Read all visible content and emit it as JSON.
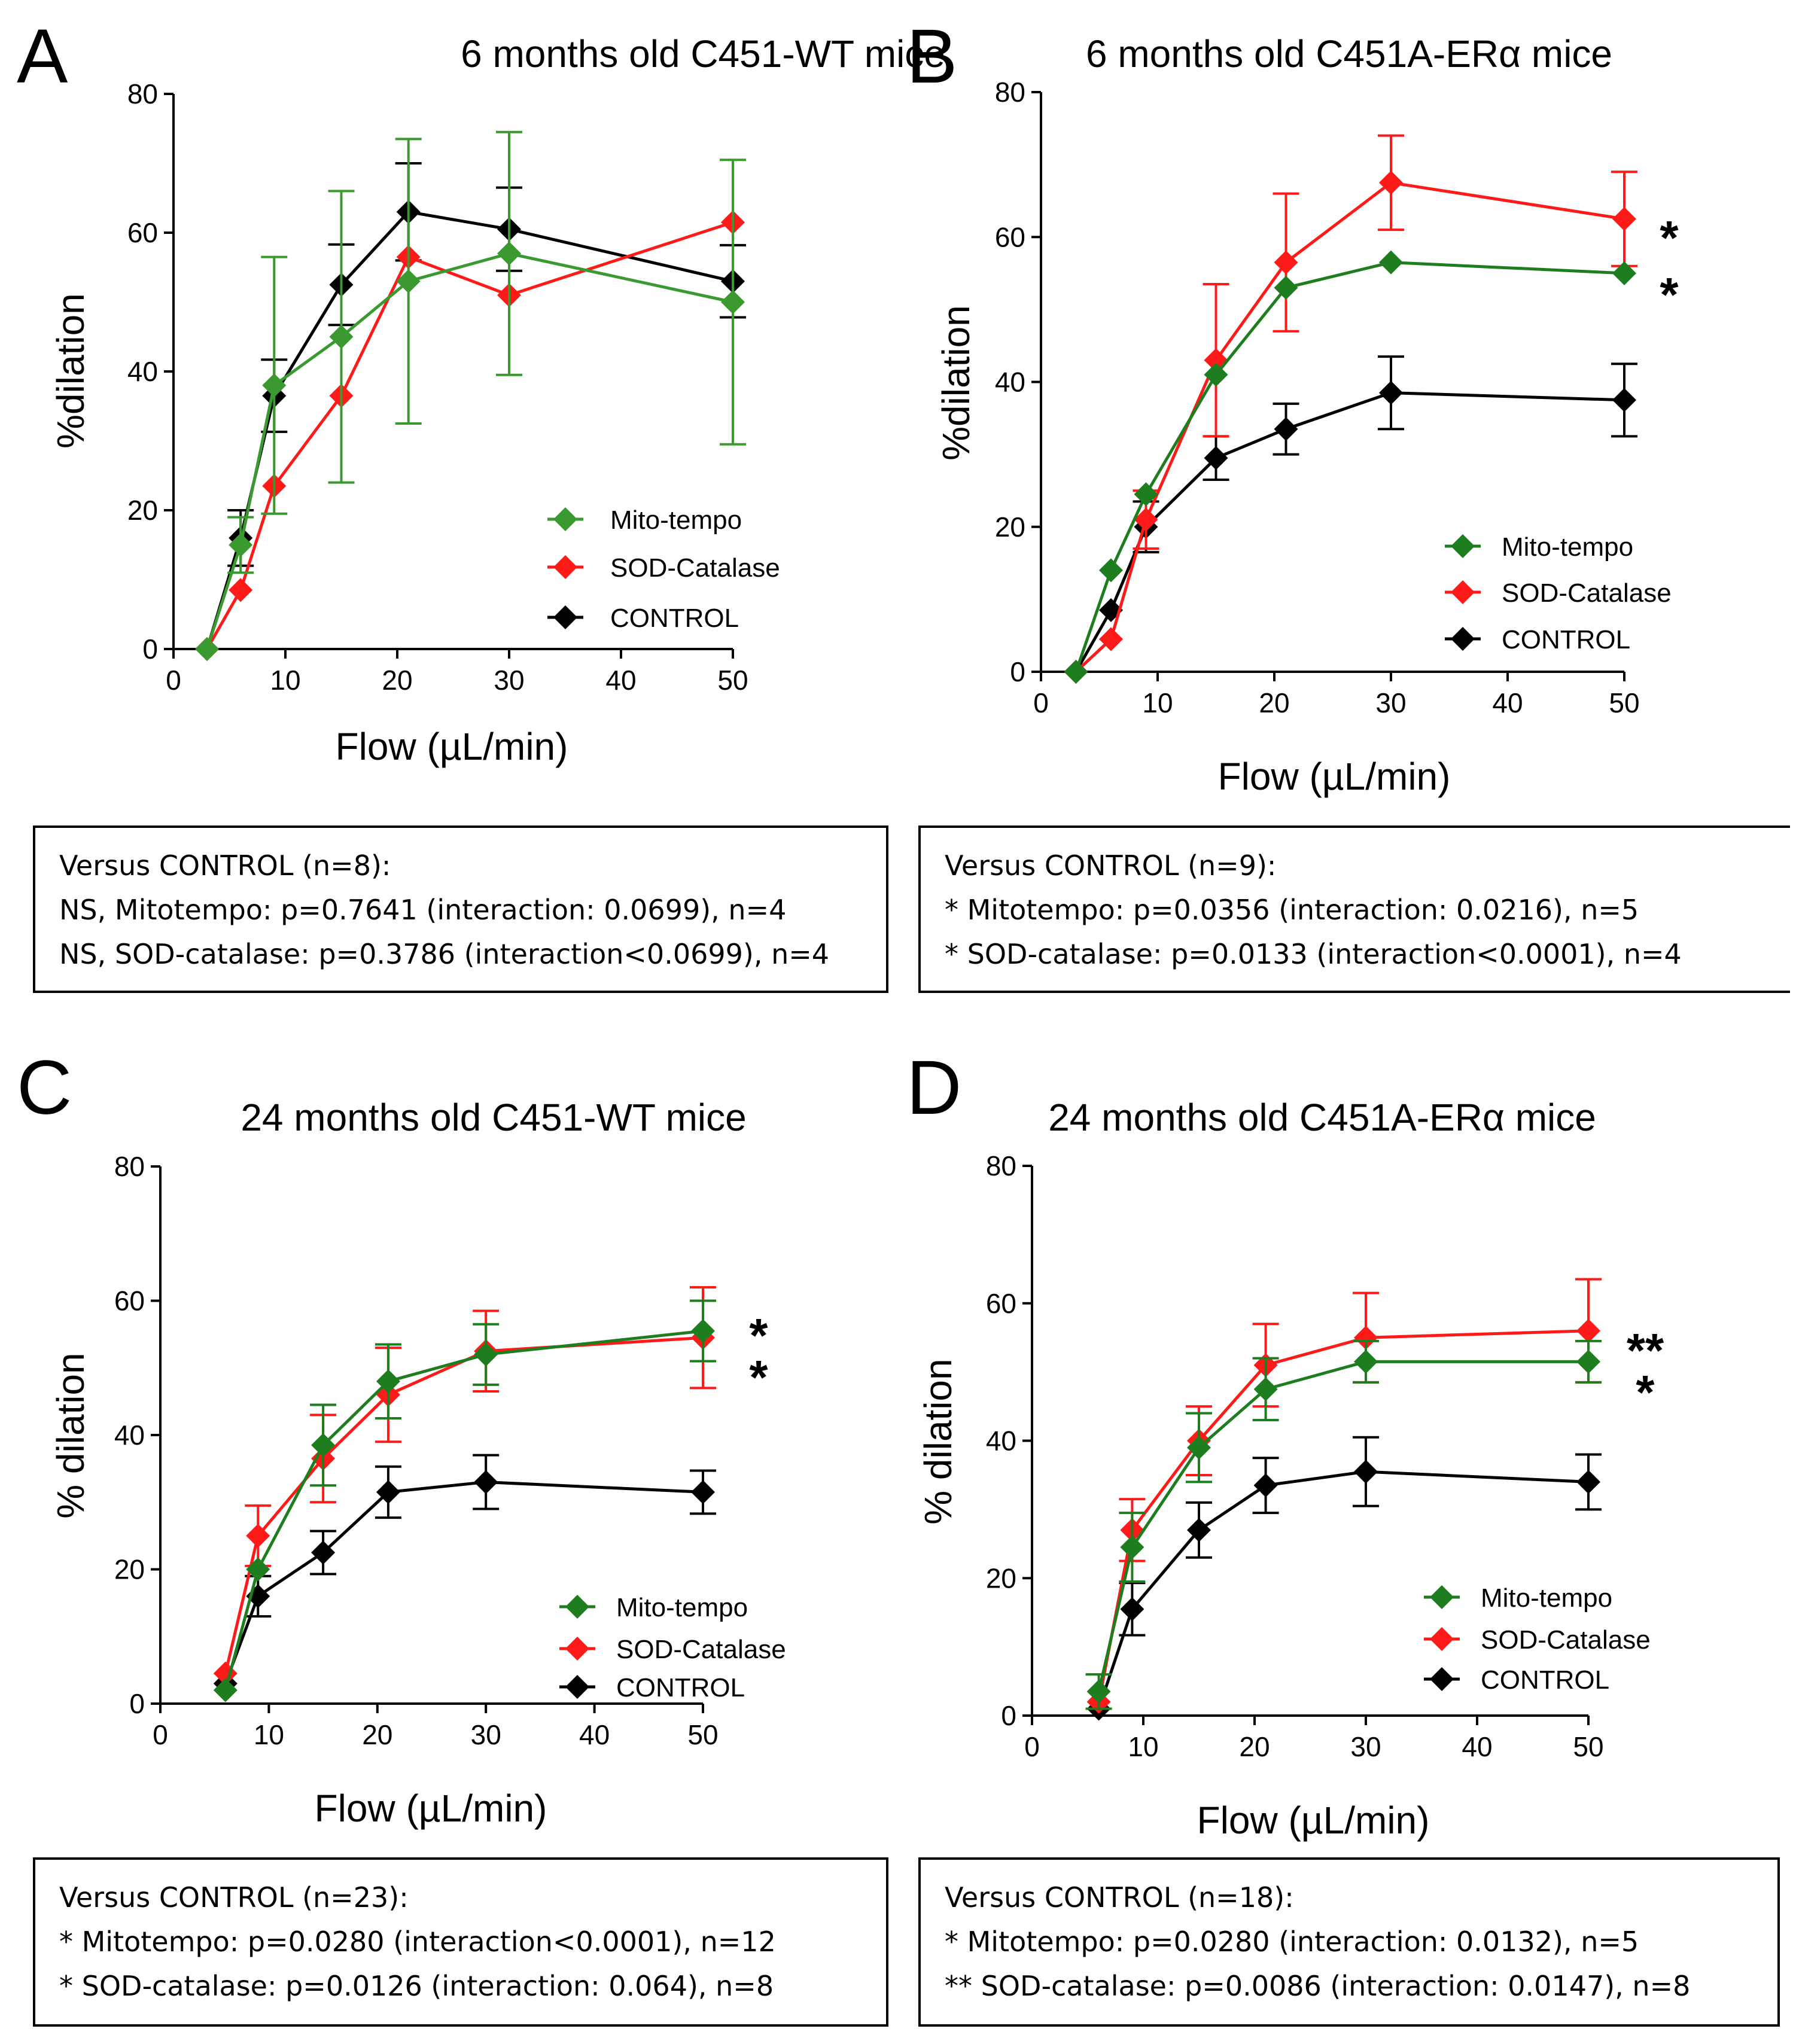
{
  "colors": {
    "mito": "#3a9a2f",
    "mito_dark": "#1e7d1e",
    "sod": "#ff1a1a",
    "control": "#000000"
  },
  "chart_data": [
    {
      "panel": "A",
      "type": "line",
      "title": "6 months old C451-WT mice",
      "xlabel": "Flow (µL/min)",
      "ylabel": "%dilation",
      "xlim": [
        0,
        50
      ],
      "ylim": [
        0,
        80
      ],
      "xticks": [
        "0",
        "10",
        "20",
        "30",
        "40",
        "50"
      ],
      "yticks": [
        "0",
        "20",
        "40",
        "60",
        "80"
      ],
      "legend": [
        "Mito-tempo",
        "SOD-Catalase",
        "CONTROL"
      ],
      "stars": [],
      "series": [
        {
          "name": "Mito-tempo",
          "color": "#3a9a2f",
          "x": [
            3,
            6,
            9,
            15,
            21,
            30,
            50
          ],
          "y": [
            0,
            15,
            38,
            45,
            53,
            57,
            50
          ],
          "err": [
            0,
            4,
            18.5,
            21,
            20.5,
            17.5,
            20.5
          ]
        },
        {
          "name": "SOD-Catalase",
          "color": "#ff1a1a",
          "x": [
            3,
            6,
            9,
            15,
            21,
            30,
            50
          ],
          "y": [
            0,
            8.5,
            23.5,
            36.5,
            56.5,
            51,
            61.5
          ],
          "err": [
            0,
            0,
            0,
            0,
            0,
            0,
            0
          ]
        },
        {
          "name": "CONTROL",
          "color": "#000000",
          "x": [
            3,
            6,
            9,
            15,
            21,
            30,
            50
          ],
          "y": [
            0,
            16,
            36.5,
            52.5,
            63,
            60.5,
            53
          ],
          "err": [
            0,
            4,
            5.2,
            5.8,
            7,
            6,
            5.2
          ]
        }
      ],
      "stats": {
        "heading": "Versus CONTROL (n=8):",
        "line1": "NS, Mitotempo: p=0.7641 (interaction: 0.0699), n=4",
        "line2": "NS, SOD-catalase: p=0.3786 (interaction<0.0699), n=4"
      }
    },
    {
      "panel": "B",
      "type": "line",
      "title": "6 months old C451A-ERα mice",
      "xlabel": "Flow (µL/min)",
      "ylabel": "%dilation",
      "xlim": [
        0,
        50
      ],
      "ylim": [
        0,
        80
      ],
      "xticks": [
        "0",
        "10",
        "20",
        "30",
        "40",
        "50"
      ],
      "yticks": [
        "0",
        "20",
        "40",
        "60",
        "80"
      ],
      "legend": [
        "Mito-tempo",
        "SOD-Catalase",
        "CONTROL"
      ],
      "stars": [
        "*",
        "*"
      ],
      "series": [
        {
          "name": "Mito-tempo",
          "color": "#1e7d1e",
          "x": [
            3,
            6,
            9,
            15,
            21,
            30,
            50
          ],
          "y": [
            0,
            14,
            24.5,
            41,
            53,
            56.5,
            55
          ],
          "err": [
            0,
            0,
            0,
            0,
            0,
            0,
            0
          ]
        },
        {
          "name": "SOD-Catalase",
          "color": "#ff1a1a",
          "x": [
            3,
            6,
            9,
            15,
            21,
            30,
            50
          ],
          "y": [
            0,
            4.5,
            21,
            43,
            56.5,
            67.5,
            62.5
          ],
          "err": [
            0,
            0,
            4,
            10.5,
            9.5,
            6.5,
            6.5
          ]
        },
        {
          "name": "CONTROL",
          "color": "#000000",
          "x": [
            3,
            6,
            9,
            15,
            21,
            30,
            50
          ],
          "y": [
            0,
            8.5,
            20,
            29.5,
            33.5,
            38.5,
            37.5
          ],
          "err": [
            0,
            0,
            3.5,
            3,
            3.5,
            5,
            5
          ]
        }
      ],
      "stats": {
        "heading": "Versus CONTROL (n=9):",
        "line1": "* Mitotempo: p=0.0356 (interaction: 0.0216), n=5",
        "line2": "* SOD-catalase: p=0.0133 (interaction<0.0001), n=4"
      }
    },
    {
      "panel": "C",
      "type": "line",
      "title": "24 months old C451-WT mice",
      "xlabel": "Flow (µL/min)",
      "ylabel": "% dilation",
      "xlim": [
        0,
        50
      ],
      "ylim": [
        0,
        80
      ],
      "xticks": [
        "0",
        "10",
        "20",
        "30",
        "40",
        "50"
      ],
      "yticks": [
        "0",
        "20",
        "40",
        "60",
        "80"
      ],
      "legend": [
        "Mito-tempo",
        "SOD-Catalase",
        "CONTROL"
      ],
      "stars": [
        "*",
        "*"
      ],
      "series": [
        {
          "name": "Mito-tempo",
          "color": "#1e7d1e",
          "x": [
            6,
            9,
            15,
            21,
            30,
            50
          ],
          "y": [
            2,
            20,
            38.5,
            48,
            52,
            55.5
          ],
          "err": [
            0,
            0,
            6,
            5.5,
            4.5,
            4.5
          ]
        },
        {
          "name": "SOD-Catalase",
          "color": "#ff1a1a",
          "x": [
            6,
            9,
            15,
            21,
            30,
            50
          ],
          "y": [
            4.5,
            25,
            36.5,
            46,
            52.5,
            54.5
          ],
          "err": [
            0,
            4.5,
            6.5,
            7,
            6,
            7.5
          ]
        },
        {
          "name": "CONTROL",
          "color": "#000000",
          "x": [
            6,
            9,
            15,
            21,
            30,
            50
          ],
          "y": [
            3,
            16,
            22.5,
            31.5,
            33,
            31.5
          ],
          "err": [
            0,
            3,
            3.2,
            3.8,
            4,
            3.2
          ]
        }
      ],
      "stats": {
        "heading": "Versus CONTROL (n=23):",
        "line1": "* Mitotempo: p=0.0280 (interaction<0.0001), n=12",
        "line2": "* SOD-catalase: p=0.0126 (interaction: 0.064), n=8"
      }
    },
    {
      "panel": "D",
      "type": "line",
      "title": "24 months old C451A-ERα mice",
      "xlabel": "Flow (µL/min)",
      "ylabel": "% dilation",
      "xlim": [
        0,
        50
      ],
      "ylim": [
        0,
        80
      ],
      "xticks": [
        "0",
        "10",
        "20",
        "30",
        "40",
        "50"
      ],
      "yticks": [
        "0",
        "20",
        "40",
        "60",
        "80"
      ],
      "legend": [
        "Mito-tempo",
        "SOD-Catalase",
        "CONTROL"
      ],
      "stars": [
        "**",
        "*"
      ],
      "series": [
        {
          "name": "Mito-tempo",
          "color": "#1e7d1e",
          "x": [
            6,
            9,
            15,
            21,
            30,
            50
          ],
          "y": [
            3.5,
            24.5,
            39,
            47.5,
            51.5,
            51.5
          ],
          "err": [
            2.5,
            5,
            5,
            4.5,
            3,
            3
          ]
        },
        {
          "name": "SOD-Catalase",
          "color": "#ff1a1a",
          "x": [
            6,
            9,
            15,
            21,
            30,
            50
          ],
          "y": [
            2,
            27,
            40,
            51,
            55,
            56
          ],
          "err": [
            0,
            4.5,
            5,
            6,
            6.5,
            7.5
          ]
        },
        {
          "name": "CONTROL",
          "color": "#000000",
          "x": [
            6,
            9,
            15,
            21,
            30,
            50
          ],
          "y": [
            1,
            15.5,
            27,
            33.5,
            35.5,
            34
          ],
          "err": [
            0,
            3.8,
            4,
            4,
            5,
            4
          ]
        }
      ],
      "stats": {
        "heading": "Versus CONTROL (n=18):",
        "line1": "* Mitotempo: p=0.0280 (interaction: 0.0132), n=5",
        "line2": "** SOD-catalase: p=0.0086 (interaction: 0.0147), n=8"
      }
    }
  ]
}
